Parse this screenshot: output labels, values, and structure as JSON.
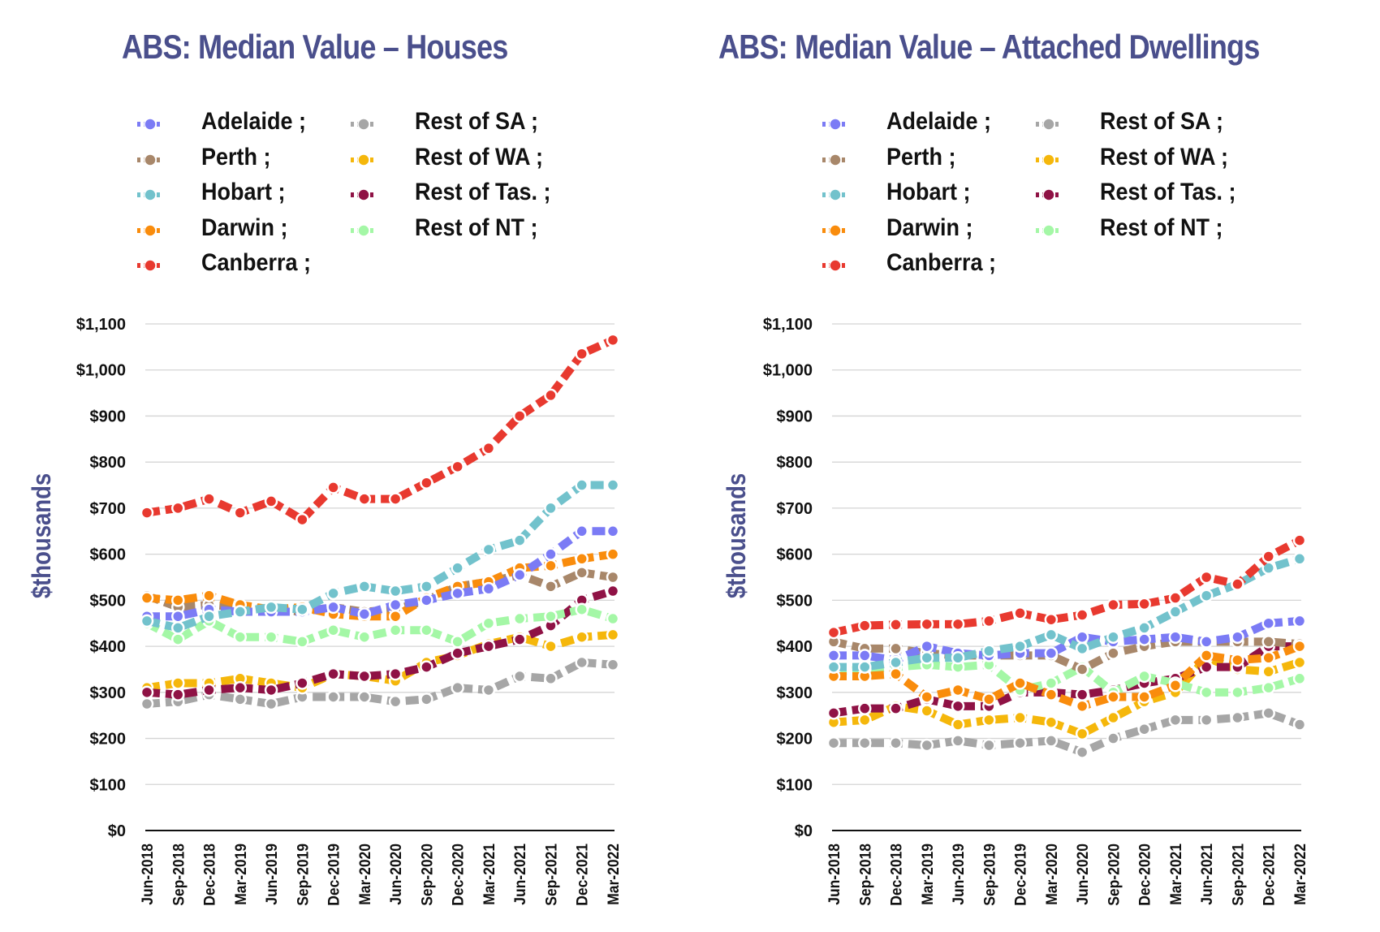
{
  "chart_data": [
    {
      "type": "line",
      "title": "ABS: Median Value – Houses",
      "xlabel": "",
      "ylabel": "$thousands",
      "ylim": [
        0,
        1100
      ],
      "yticks": [
        0,
        100,
        200,
        300,
        400,
        500,
        600,
        700,
        800,
        900,
        1000,
        1100
      ],
      "ytick_labels": [
        "$0",
        "$100",
        "$200",
        "$300",
        "$400",
        "$500",
        "$600",
        "$700",
        "$800",
        "$900",
        "$1,000",
        "$1,100"
      ],
      "grid": true,
      "legend_position": "top",
      "categories": [
        "Jun-2018",
        "Sep-2018",
        "Dec-2018",
        "Mar-2019",
        "Jun-2019",
        "Sep-2019",
        "Dec-2019",
        "Mar-2020",
        "Jun-2020",
        "Sep-2020",
        "Dec-2020",
        "Mar-2021",
        "Jun-2021",
        "Sep-2021",
        "Dec-2021",
        "Mar-2022"
      ],
      "series": [
        {
          "name": "Adelaide ;",
          "color": "#7b7bf5",
          "values": [
            465,
            465,
            480,
            475,
            475,
            475,
            485,
            470,
            490,
            500,
            515,
            525,
            555,
            600,
            650,
            650
          ]
        },
        {
          "name": "Perth ;",
          "color": "#a8876a",
          "values": [
            510,
            485,
            490,
            485,
            480,
            475,
            485,
            475,
            480,
            500,
            530,
            540,
            555,
            530,
            560,
            550
          ]
        },
        {
          "name": "Hobart ;",
          "color": "#72c2cc",
          "values": [
            455,
            440,
            465,
            475,
            485,
            480,
            515,
            530,
            520,
            530,
            570,
            610,
            630,
            700,
            750,
            750
          ]
        },
        {
          "name": "Darwin ;",
          "color": "#f98c0c",
          "values": [
            505,
            500,
            510,
            490,
            480,
            485,
            470,
            465,
            465,
            505,
            530,
            540,
            570,
            575,
            590,
            600
          ]
        },
        {
          "name": "Canberra ;",
          "color": "#e8392f",
          "values": [
            690,
            700,
            720,
            690,
            715,
            675,
            745,
            720,
            720,
            755,
            790,
            830,
            900,
            945,
            1035,
            1065
          ]
        },
        {
          "name": "Rest of SA ;",
          "color": "#a6a6a6",
          "values": [
            275,
            280,
            295,
            285,
            275,
            290,
            290,
            290,
            280,
            285,
            310,
            305,
            335,
            330,
            365,
            360
          ]
        },
        {
          "name": "Rest of WA ;",
          "color": "#f5b70b",
          "values": [
            310,
            320,
            320,
            330,
            320,
            310,
            340,
            335,
            325,
            365,
            380,
            405,
            420,
            400,
            420,
            425
          ]
        },
        {
          "name": "Rest of Tas. ;",
          "color": "#8f1245",
          "values": [
            300,
            295,
            305,
            310,
            305,
            320,
            340,
            335,
            340,
            355,
            385,
            400,
            415,
            445,
            500,
            520
          ]
        },
        {
          "name": "Rest of NT ;",
          "color": "#a4f7a6",
          "values": [
            450,
            415,
            455,
            420,
            420,
            410,
            435,
            420,
            435,
            435,
            410,
            450,
            460,
            465,
            480,
            460
          ]
        }
      ]
    },
    {
      "type": "line",
      "title": "ABS: Median Value – Attached Dwellings",
      "xlabel": "",
      "ylabel": "$thousands",
      "ylim": [
        0,
        1100
      ],
      "yticks": [
        0,
        100,
        200,
        300,
        400,
        500,
        600,
        700,
        800,
        900,
        1000,
        1100
      ],
      "ytick_labels": [
        "$0",
        "$100",
        "$200",
        "$300",
        "$400",
        "$500",
        "$600",
        "$700",
        "$800",
        "$900",
        "$1,000",
        "$1,100"
      ],
      "grid": true,
      "legend_position": "top",
      "categories": [
        "Jun-2018",
        "Sep-2018",
        "Dec-2018",
        "Mar-2019",
        "Jun-2019",
        "Sep-2019",
        "Dec-2019",
        "Mar-2020",
        "Jun-2020",
        "Sep-2020",
        "Dec-2020",
        "Mar-2021",
        "Jun-2021",
        "Sep-2021",
        "Dec-2021",
        "Mar-2022"
      ],
      "series": [
        {
          "name": "Adelaide ;",
          "color": "#7b7bf5",
          "values": [
            380,
            380,
            370,
            400,
            385,
            380,
            385,
            385,
            420,
            410,
            415,
            420,
            410,
            420,
            450,
            455
          ]
        },
        {
          "name": "Perth ;",
          "color": "#a8876a",
          "values": [
            410,
            395,
            395,
            385,
            380,
            380,
            380,
            380,
            350,
            385,
            400,
            410,
            410,
            410,
            410,
            405
          ]
        },
        {
          "name": "Hobart ;",
          "color": "#72c2cc",
          "values": [
            355,
            355,
            365,
            375,
            375,
            390,
            400,
            425,
            395,
            420,
            440,
            475,
            510,
            535,
            570,
            590
          ]
        },
        {
          "name": "Darwin ;",
          "color": "#f98c0c",
          "values": [
            335,
            335,
            340,
            290,
            305,
            285,
            320,
            295,
            270,
            290,
            290,
            315,
            380,
            370,
            375,
            400
          ]
        },
        {
          "name": "Canberra ;",
          "color": "#e8392f",
          "values": [
            430,
            445,
            447,
            448,
            448,
            455,
            472,
            458,
            468,
            490,
            492,
            505,
            550,
            535,
            595,
            630
          ]
        },
        {
          "name": "Rest of SA ;",
          "color": "#a6a6a6",
          "values": [
            190,
            190,
            190,
            185,
            195,
            185,
            190,
            195,
            170,
            200,
            220,
            240,
            240,
            245,
            255,
            230
          ]
        },
        {
          "name": "Rest of WA ;",
          "color": "#f5b70b",
          "values": [
            235,
            240,
            270,
            260,
            230,
            240,
            245,
            235,
            210,
            245,
            280,
            300,
            375,
            350,
            345,
            365
          ]
        },
        {
          "name": "Rest of Tas. ;",
          "color": "#8f1245",
          "values": [
            255,
            265,
            265,
            285,
            270,
            270,
            300,
            300,
            295,
            305,
            320,
            330,
            355,
            355,
            400,
            400
          ]
        },
        {
          "name": "Rest of NT ;",
          "color": "#a4f7a6",
          "values": [
            345,
            350,
            355,
            360,
            355,
            360,
            305,
            320,
            355,
            300,
            335,
            320,
            300,
            300,
            310,
            330
          ]
        }
      ]
    }
  ]
}
